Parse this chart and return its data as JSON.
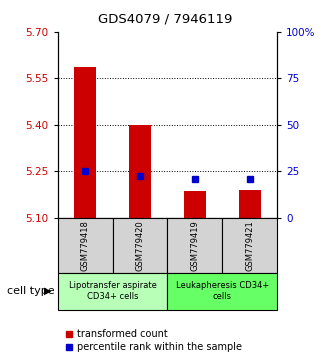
{
  "title": "GDS4079 / 7946119",
  "samples": [
    "GSM779418",
    "GSM779420",
    "GSM779419",
    "GSM779421"
  ],
  "red_bar_tops": [
    5.585,
    5.4,
    5.185,
    5.19
  ],
  "red_bar_bottom": 5.1,
  "blue_marker_values": [
    5.25,
    5.235,
    5.225,
    5.225
  ],
  "ylim_left": [
    5.1,
    5.7
  ],
  "ylim_right": [
    0,
    100
  ],
  "yticks_left": [
    5.1,
    5.25,
    5.4,
    5.55,
    5.7
  ],
  "yticks_right": [
    0,
    25,
    50,
    75,
    100
  ],
  "ytick_labels_right": [
    "0",
    "25",
    "50",
    "75",
    "100%"
  ],
  "grid_values": [
    5.25,
    5.4,
    5.55
  ],
  "cell_type_labels": [
    "Lipotransfer aspirate\nCD34+ cells",
    "Leukapheresis CD34+\ncells"
  ],
  "cell_type_colors": [
    "#b8ffb8",
    "#66ff66"
  ],
  "sample_bg_color": "#d3d3d3",
  "bar_color": "#cc0000",
  "marker_color": "#0000cc",
  "left_axis_color": "#cc0000",
  "right_axis_color": "#0000cc",
  "cell_type_label": "cell type",
  "legend_red": "transformed count",
  "legend_blue": "percentile rank within the sample",
  "bar_width": 0.4
}
